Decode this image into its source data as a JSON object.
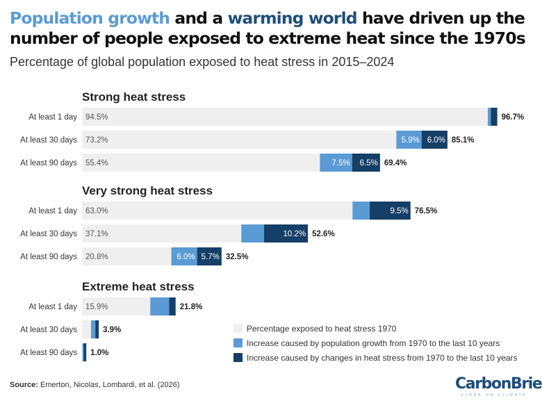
{
  "title": {
    "part1": "Population growth",
    "part2": " and a ",
    "part3": "warming world",
    "part4": " have driven up the number of people exposed to extreme heat since the 1970s"
  },
  "subtitle": "Percentage of global population exposed to heat stress in 2015–2024",
  "colors": {
    "base": "#efefef",
    "population": "#5b9bd5",
    "heat_stress": "#153f66"
  },
  "chart_data": {
    "type": "bar",
    "orientation": "horizontal",
    "stacked": true,
    "xlim": [
      0,
      100
    ],
    "series": [
      {
        "key": "base",
        "name": "Percentage exposed to heat stress 1970"
      },
      {
        "key": "population",
        "name": "Increase caused by population growth from 1970 to the last 10 years"
      },
      {
        "key": "heat",
        "name": "Increase caused by changes in heat stress from 1970 to the last 10 years"
      }
    ],
    "groups": [
      {
        "title": "Strong heat stress",
        "rows": [
          {
            "label": "At least 1 day",
            "base": 94.5,
            "population": 0.7,
            "heat": 1.5,
            "base_label": "94.5%",
            "population_label": "",
            "heat_label": "",
            "total_label": "96.7%"
          },
          {
            "label": "At least 30 days",
            "base": 73.2,
            "population": 5.9,
            "heat": 6.0,
            "base_label": "73.2%",
            "population_label": "5.9%",
            "heat_label": "6.0%",
            "total_label": "85.1%"
          },
          {
            "label": "At least 90 days",
            "base": 55.4,
            "population": 7.5,
            "heat": 6.5,
            "base_label": "55.4%",
            "population_label": "7.5%",
            "heat_label": "6.5%",
            "total_label": "69.4%"
          }
        ]
      },
      {
        "title": "Very strong heat stress",
        "rows": [
          {
            "label": "At least 1 day",
            "base": 63.0,
            "population": 4.0,
            "heat": 9.5,
            "base_label": "63.0%",
            "population_label": "",
            "heat_label": "9.5%",
            "total_label": "76.5%"
          },
          {
            "label": "At least 30 days",
            "base": 37.1,
            "population": 5.3,
            "heat": 10.2,
            "base_label": "37.1%",
            "population_label": "",
            "heat_label": "10.2%",
            "total_label": "52.6%"
          },
          {
            "label": "At least 90 days",
            "base": 20.8,
            "population": 6.0,
            "heat": 5.7,
            "base_label": "20.8%",
            "population_label": "6.0%",
            "heat_label": "5.7%",
            "total_label": "32.5%"
          }
        ]
      },
      {
        "title": "Extreme heat stress",
        "rows": [
          {
            "label": "At least 1 day",
            "base": 15.9,
            "population": 4.4,
            "heat": 1.5,
            "base_label": "15.9%",
            "population_label": "",
            "heat_label": "",
            "total_label": "21.8%"
          },
          {
            "label": "At least 30 days",
            "base": 2.1,
            "population": 1.0,
            "heat": 0.8,
            "base_label": "",
            "population_label": "",
            "heat_label": "",
            "total_label": "3.9%"
          },
          {
            "label": "At least 90 days",
            "base": 0.1,
            "population": 0.3,
            "heat": 0.6,
            "base_label": "",
            "population_label": "",
            "heat_label": "",
            "total_label": "1.0%"
          }
        ]
      }
    ]
  },
  "legend": {
    "base": "Percentage exposed to heat stress 1970",
    "population": "Increase caused by population growth from 1970 to the last 10 years",
    "heat": "Increase caused by changes in heat stress from 1970 to the last 10 years"
  },
  "source": {
    "label": "Source:",
    "text": " Emerton, Nicolas, Lombardi, et al. (2026)"
  },
  "logo": {
    "name": "CarbonBrief",
    "tagline": "CLEAR ON CLIMATE"
  }
}
